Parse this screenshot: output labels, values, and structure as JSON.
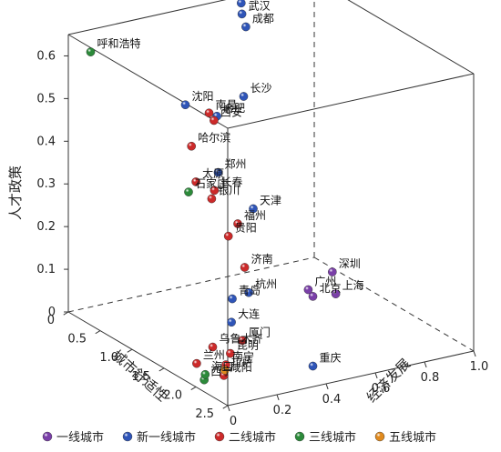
{
  "chart_data": {
    "type": "scatter",
    "projection": "3d",
    "xlabel": "城市舒适性",
    "ylabel": "经济发展",
    "zlabel": "人才政策",
    "xlim": [
      0,
      2.5
    ],
    "ylim": [
      0,
      1.0
    ],
    "zlim": [
      0,
      0.65
    ],
    "x_ticks": [
      "0",
      "0.5",
      "1.0",
      "1.5",
      "2.0",
      "2.5"
    ],
    "y_ticks": [
      "0",
      "0.2",
      "0.4",
      "0.6",
      "0.8",
      "1.0"
    ],
    "z_ticks": [
      "0",
      "0.1",
      "0.2",
      "0.3",
      "0.4",
      "0.5",
      "0.6"
    ],
    "grid": false,
    "legend_position": "bottom",
    "series": [
      {
        "name": "一线城市",
        "color": "#7a3fa8",
        "points": [
          {
            "label": "深圳",
            "x": 0.36,
            "y": 0.98,
            "z": 0.0
          },
          {
            "label": "广州",
            "x": 0.6,
            "y": 0.82,
            "z": 0.0
          },
          {
            "label": "北京",
            "x": 0.75,
            "y": 0.8,
            "z": 0.0
          },
          {
            "label": "上海",
            "x": 0.8,
            "y": 0.88,
            "z": 0.0
          }
        ]
      },
      {
        "name": "新一线城市",
        "color": "#2f55b8",
        "points": [
          {
            "label": "南京",
            "x": 0.05,
            "y": 0.69,
            "z": 0.64
          },
          {
            "label": "武汉",
            "x": 0.1,
            "y": 0.68,
            "z": 0.62
          },
          {
            "label": "成都",
            "x": 0.2,
            "y": 0.67,
            "z": 0.6
          },
          {
            "label": "沈阳",
            "x": 1.45,
            "y": 0.1,
            "z": 0.6
          },
          {
            "label": "合肥",
            "x": 0.98,
            "y": 0.35,
            "z": 0.5
          },
          {
            "label": "郑州",
            "x": 1.0,
            "y": 0.35,
            "z": 0.37
          },
          {
            "label": "长沙",
            "x": 0.05,
            "y": 0.7,
            "z": 0.42
          },
          {
            "label": "天津",
            "x": 0.2,
            "y": 0.7,
            "z": 0.17
          },
          {
            "label": "青岛",
            "x": 0.45,
            "y": 0.55,
            "z": 0.0
          },
          {
            "label": "杭州",
            "x": 0.4,
            "y": 0.63,
            "z": 0.0
          },
          {
            "label": "大连",
            "x": 0.9,
            "y": 0.43,
            "z": 0.0
          },
          {
            "label": "重庆",
            "x": 2.1,
            "y": 0.45,
            "z": 0.0
          }
        ]
      },
      {
        "name": "二线城市",
        "color": "#cc2a2a",
        "points": [
          {
            "label": "哈尔滨",
            "x": 1.7,
            "y": 0.06,
            "z": 0.53
          },
          {
            "label": "南昌",
            "x": 1.05,
            "y": 0.3,
            "z": 0.52
          },
          {
            "label": "西安",
            "x": 1.05,
            "y": 0.32,
            "z": 0.5
          },
          {
            "label": "太原",
            "x": 1.5,
            "y": 0.13,
            "z": 0.42
          },
          {
            "label": "银川",
            "x": 1.4,
            "y": 0.22,
            "z": 0.36
          },
          {
            "label": "长春",
            "x": 1.25,
            "y": 0.27,
            "z": 0.36
          },
          {
            "label": "贵阳",
            "x": 1.7,
            "y": 0.21,
            "z": 0.3
          },
          {
            "label": "福州",
            "x": 1.5,
            "y": 0.3,
            "z": 0.3
          },
          {
            "label": "济南",
            "x": 1.3,
            "y": 0.38,
            "z": 0.17
          },
          {
            "label": "厦门",
            "x": 1.3,
            "y": 0.37,
            "z": 0.0
          },
          {
            "label": "乌鲁木齐",
            "x": 1.3,
            "y": 0.25,
            "z": 0.0
          },
          {
            "label": "南宁",
            "x": 1.7,
            "y": 0.2,
            "z": 0.0
          },
          {
            "label": "昆明",
            "x": 1.5,
            "y": 0.27,
            "z": 0.0
          },
          {
            "label": "咸阳",
            "x": 1.9,
            "y": 0.14,
            "z": 0.0
          },
          {
            "label": "兰州",
            "x": 1.55,
            "y": 0.12,
            "z": 0.0
          }
        ]
      },
      {
        "name": "三线城市",
        "color": "#2c8a3a",
        "points": [
          {
            "label": "呼和浩特",
            "x": 0.35,
            "y": 0.0,
            "z": 0.64
          },
          {
            "label": "石家庄",
            "x": 1.5,
            "y": 0.1,
            "z": 0.4
          },
          {
            "label": "西宁",
            "x": 1.9,
            "y": 0.06,
            "z": 0.0
          },
          {
            "label": "海口",
            "x": 1.8,
            "y": 0.09,
            "z": 0.0
          }
        ]
      },
      {
        "name": "五线城市",
        "color": "#e08a1e",
        "points": [
          {
            "label": "拉萨",
            "x": 1.8,
            "y": 0.17,
            "z": 0.0
          }
        ]
      }
    ]
  }
}
